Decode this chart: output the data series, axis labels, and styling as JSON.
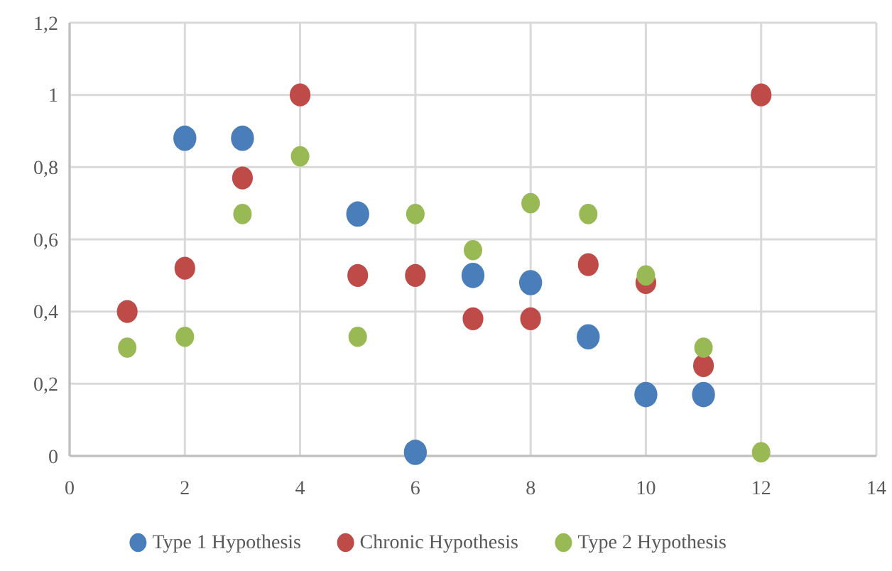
{
  "chart_data": {
    "type": "scatter",
    "xlim": [
      0,
      14
    ],
    "xticks": [
      0,
      2,
      4,
      6,
      8,
      10,
      12,
      14
    ],
    "ylim": [
      0,
      1.2
    ],
    "yticks": [
      0,
      {
        "value": 0.2,
        "label": "0,2"
      },
      {
        "value": 0.4,
        "label": "0,4"
      },
      {
        "value": 0.6,
        "label": "0,6"
      },
      {
        "value": 0.8,
        "label": "0,8"
      },
      1,
      {
        "value": 1.2,
        "label": "1,2"
      }
    ],
    "grid": true,
    "legend": "bottom",
    "marker": "circle",
    "series": [
      {
        "name": "Type 1 Hypothesis",
        "color": "#4a7ebb",
        "x": [
          2,
          3,
          5,
          6,
          7,
          8,
          9,
          10,
          11
        ],
        "values": [
          0.88,
          0.88,
          0.67,
          0.01,
          0.5,
          0.48,
          0.33,
          0.17,
          0.17
        ]
      },
      {
        "name": "Chronic Hypothesis",
        "color": "#be4b48",
        "x": [
          1,
          2,
          3,
          4,
          5,
          6,
          7,
          8,
          9,
          10,
          11,
          12
        ],
        "values": [
          0.4,
          0.52,
          0.77,
          1,
          0.5,
          0.5,
          0.38,
          0.38,
          0.53,
          0.48,
          0.25,
          1
        ]
      },
      {
        "name": "Type 2 Hypothesis",
        "color": "#98b954",
        "x": [
          1,
          2,
          3,
          4,
          5,
          6,
          7,
          8,
          9,
          10,
          11,
          12
        ],
        "values": [
          0.3,
          0.33,
          0.67,
          0.83,
          0.33,
          0.67,
          0.57,
          0.7,
          0.67,
          0.5,
          0.3,
          0.01
        ]
      }
    ]
  }
}
